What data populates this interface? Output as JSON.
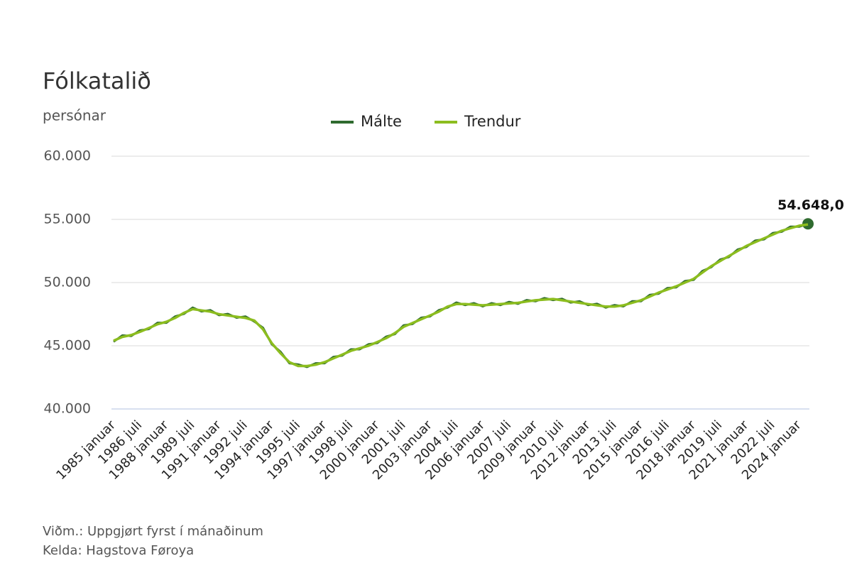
{
  "chart_data": {
    "type": "line",
    "title": "Fólkatalið",
    "subtitle": "persónar",
    "notes": [
      "Viðm.: Uppgjørt fyrst í mánaðinum",
      "Kelda: Hagstova Føroya"
    ],
    "categories": [
      "1985 januar",
      null,
      null,
      "1986 juli",
      null,
      null,
      "1988 januar",
      null,
      null,
      "1989 juli",
      null,
      null,
      "1991 januar",
      null,
      null,
      "1992 juli",
      null,
      null,
      "1994 januar",
      null,
      null,
      "1995 juli",
      null,
      null,
      "1997 januar",
      null,
      null,
      "1998 juli",
      null,
      null,
      "2000 januar",
      null,
      null,
      "2001 juli",
      null,
      null,
      "2003 januar",
      null,
      null,
      "2004 juli",
      null,
      null,
      "2006 januar",
      null,
      null,
      "2007 juli",
      null,
      null,
      "2009 januar",
      null,
      null,
      "2010 juli",
      null,
      null,
      "2012 januar",
      null,
      null,
      "2013 juli",
      null,
      null,
      "2015 januar",
      null,
      null,
      "2016 juli",
      null,
      null,
      "2018 januar",
      null,
      null,
      "2019 juli",
      null,
      null,
      "2021 januar",
      null,
      null,
      "2022 juli",
      null,
      null,
      "2024 januar",
      null
    ],
    "series": [
      {
        "name": "Málte",
        "color": "#2f6b2f",
        "values": [
          45320,
          45820,
          45770,
          46220,
          46320,
          46820,
          46820,
          47320,
          47520,
          48020,
          47720,
          47820,
          47420,
          47520,
          47220,
          47320,
          46920,
          46420,
          45120,
          44520,
          43620,
          43520,
          43320,
          43620,
          43620,
          44120,
          44220,
          44720,
          44720,
          45120,
          45220,
          45720,
          45920,
          46620,
          46720,
          47220,
          47320,
          47820,
          48020,
          48420,
          48220,
          48370,
          48120,
          48370,
          48220,
          48470,
          48320,
          48620,
          48520,
          48770,
          48620,
          48720,
          48420,
          48520,
          48220,
          48320,
          48020,
          48220,
          48120,
          48520,
          48520,
          49020,
          49120,
          49570,
          49620,
          50120,
          50220,
          50920,
          51220,
          51820,
          52020,
          52620,
          52820,
          53320,
          53420,
          53920,
          54020,
          54420,
          54420,
          54648
        ],
        "value_labels": [
          null,
          null,
          null,
          null,
          null,
          null,
          null,
          null,
          null,
          null,
          null,
          null,
          null,
          null,
          null,
          null,
          null,
          null,
          null,
          null,
          null,
          null,
          null,
          null,
          null,
          null,
          null,
          null,
          null,
          null,
          null,
          null,
          null,
          null,
          null,
          null,
          null,
          null,
          null,
          null,
          null,
          null,
          null,
          null,
          null,
          null,
          null,
          null,
          null,
          null,
          null,
          null,
          null,
          null,
          null,
          null,
          null,
          null,
          null,
          null,
          null,
          null,
          null,
          null,
          null,
          null,
          null,
          null,
          null,
          null,
          null,
          null,
          null,
          null,
          null,
          null,
          null,
          null,
          null,
          "54.648,0"
        ]
      },
      {
        "name": "Trendur",
        "color": "#8cbd1f",
        "values": [
          45400,
          45700,
          45850,
          46100,
          46400,
          46700,
          46900,
          47200,
          47600,
          47900,
          47800,
          47700,
          47500,
          47400,
          47300,
          47200,
          47000,
          46300,
          45200,
          44400,
          43700,
          43400,
          43400,
          43500,
          43700,
          44000,
          44300,
          44600,
          44800,
          45000,
          45300,
          45600,
          46000,
          46500,
          46800,
          47100,
          47400,
          47700,
          48100,
          48300,
          48300,
          48250,
          48200,
          48250,
          48300,
          48350,
          48400,
          48500,
          48600,
          48650,
          48700,
          48600,
          48500,
          48400,
          48300,
          48200,
          48100,
          48100,
          48200,
          48400,
          48600,
          48900,
          49200,
          49450,
          49700,
          50000,
          50300,
          50800,
          51300,
          51700,
          52100,
          52500,
          52900,
          53200,
          53500,
          53800,
          54100,
          54300,
          54500,
          54600
        ]
      }
    ],
    "ylim": [
      40000,
      60000
    ],
    "yticks": [
      {
        "value": 40000,
        "label": "40.000"
      },
      {
        "value": 45000,
        "label": "45.000"
      },
      {
        "value": 50000,
        "label": "50.000"
      },
      {
        "value": 55000,
        "label": "55.000"
      },
      {
        "value": 60000,
        "label": "60.000"
      }
    ],
    "grid": true,
    "legend": "top"
  }
}
